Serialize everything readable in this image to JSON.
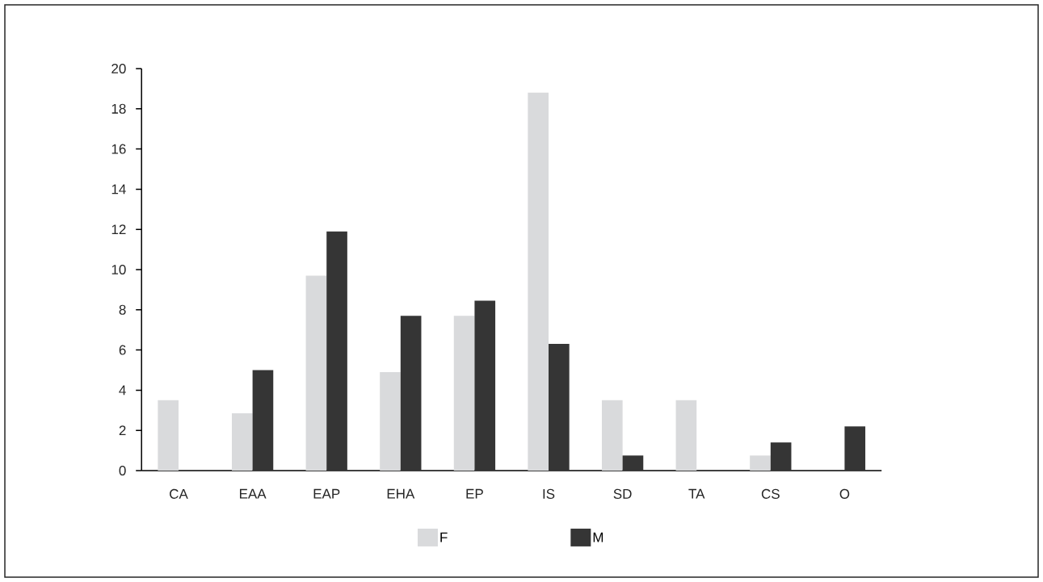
{
  "chart_data": {
    "type": "bar",
    "categories": [
      "CA",
      "EAA",
      "EAP",
      "EHA",
      "EP",
      "IS",
      "SD",
      "TA",
      "CS",
      "O"
    ],
    "series": [
      {
        "name": "F",
        "color": "#d9dadc",
        "values": [
          3.5,
          2.85,
          9.7,
          4.9,
          7.7,
          18.8,
          3.5,
          3.5,
          0.75,
          0
        ]
      },
      {
        "name": "M",
        "color": "#353535",
        "values": [
          0,
          5.0,
          11.9,
          7.7,
          8.45,
          6.3,
          0.75,
          0,
          1.4,
          2.2
        ]
      }
    ],
    "ylim": [
      0,
      20
    ],
    "yticks": [
      0,
      2,
      4,
      6,
      8,
      10,
      12,
      14,
      16,
      18,
      20
    ],
    "grid": false,
    "legend": "bottom"
  }
}
